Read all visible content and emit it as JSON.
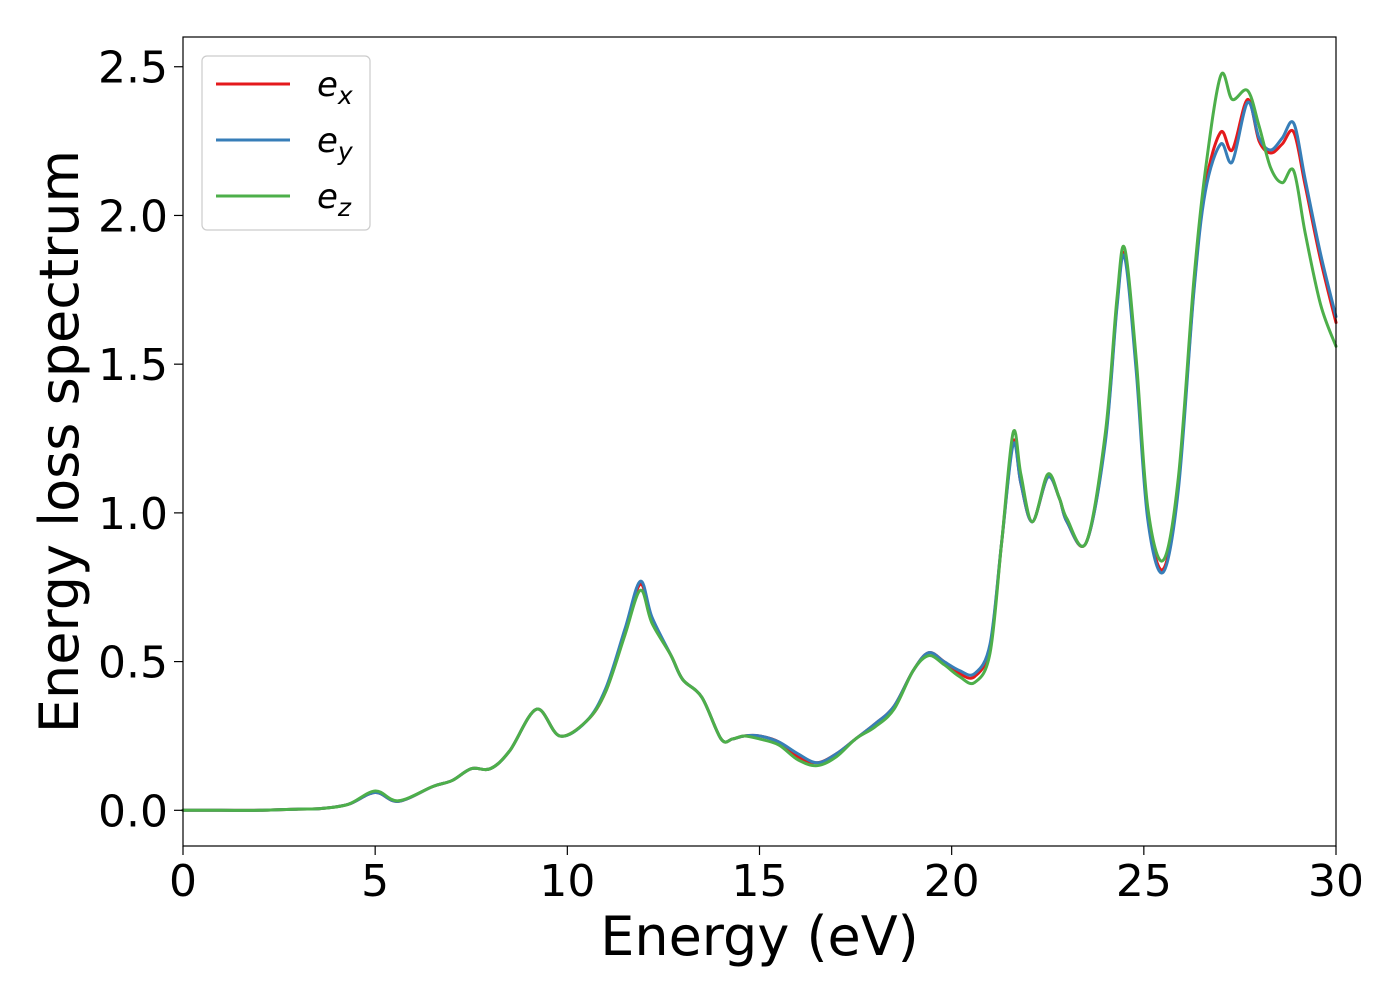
{
  "chart_data": {
    "type": "line",
    "xlabel": "Energy (eV)",
    "ylabel": "Energy loss spectrum",
    "xlim": [
      0,
      30
    ],
    "ylim": [
      -0.12,
      2.6
    ],
    "x_ticks": [
      0,
      5,
      10,
      15,
      20,
      25,
      30
    ],
    "y_ticks": [
      0.0,
      0.5,
      1.0,
      1.5,
      2.0,
      2.5
    ],
    "x_tick_labels": [
      "0",
      "5",
      "10",
      "15",
      "20",
      "25",
      "30"
    ],
    "y_tick_labels": [
      "0.0",
      "0.5",
      "1.0",
      "1.5",
      "2.0",
      "2.5"
    ],
    "grid": false,
    "legend_position": "top-left",
    "x": [
      0,
      1,
      2,
      3,
      3.6,
      4.3,
      5.0,
      5.6,
      6.5,
      7.0,
      7.5,
      8.0,
      8.5,
      9.2,
      9.8,
      10.5,
      11.0,
      11.5,
      11.9,
      12.2,
      12.7,
      13.0,
      13.5,
      14.0,
      14.3,
      14.6,
      15.0,
      15.5,
      16.0,
      16.5,
      17.0,
      17.5,
      18.0,
      18.5,
      19.0,
      19.4,
      19.8,
      20.2,
      20.6,
      21.0,
      21.3,
      21.6,
      21.8,
      22.1,
      22.5,
      22.8,
      23.0,
      23.5,
      24.0,
      24.3,
      24.5,
      24.8,
      25.1,
      25.5,
      25.9,
      26.3,
      26.6,
      27.0,
      27.3,
      27.7,
      28.0,
      28.3,
      28.6,
      28.9,
      29.2,
      29.6,
      30.0
    ],
    "series": [
      {
        "name": "e_x",
        "legend_symbol": "e",
        "legend_subscript": "x",
        "color": "#e41a1c",
        "values": [
          0.0,
          0.0,
          0.0,
          0.004,
          0.006,
          0.02,
          0.06,
          0.03,
          0.08,
          0.1,
          0.14,
          0.14,
          0.2,
          0.34,
          0.25,
          0.3,
          0.4,
          0.6,
          0.76,
          0.64,
          0.52,
          0.44,
          0.38,
          0.24,
          0.24,
          0.25,
          0.25,
          0.23,
          0.18,
          0.16,
          0.19,
          0.24,
          0.29,
          0.35,
          0.47,
          0.53,
          0.5,
          0.46,
          0.45,
          0.55,
          0.9,
          1.24,
          1.1,
          0.97,
          1.12,
          1.05,
          0.97,
          0.9,
          1.25,
          1.7,
          1.87,
          1.5,
          1.0,
          0.81,
          1.1,
          1.75,
          2.1,
          2.28,
          2.22,
          2.39,
          2.25,
          2.21,
          2.24,
          2.28,
          2.1,
          1.85,
          1.64
        ]
      },
      {
        "name": "e_y",
        "legend_symbol": "e",
        "legend_subscript": "y",
        "color": "#377eb8",
        "values": [
          0.0,
          0.0,
          0.0,
          0.004,
          0.006,
          0.02,
          0.06,
          0.03,
          0.08,
          0.1,
          0.14,
          0.14,
          0.2,
          0.34,
          0.25,
          0.3,
          0.41,
          0.61,
          0.77,
          0.65,
          0.52,
          0.44,
          0.38,
          0.24,
          0.24,
          0.25,
          0.25,
          0.23,
          0.19,
          0.16,
          0.19,
          0.24,
          0.29,
          0.35,
          0.47,
          0.53,
          0.5,
          0.47,
          0.46,
          0.56,
          0.9,
          1.23,
          1.1,
          0.97,
          1.12,
          1.05,
          0.97,
          0.9,
          1.24,
          1.69,
          1.86,
          1.48,
          0.98,
          0.8,
          1.08,
          1.74,
          2.08,
          2.24,
          2.18,
          2.38,
          2.26,
          2.22,
          2.26,
          2.31,
          2.12,
          1.87,
          1.66
        ]
      },
      {
        "name": "e_z",
        "legend_symbol": "e",
        "legend_subscript": "z",
        "color": "#4daf4a",
        "values": [
          0.0,
          0.0,
          0.0,
          0.004,
          0.006,
          0.02,
          0.065,
          0.032,
          0.08,
          0.1,
          0.14,
          0.14,
          0.2,
          0.34,
          0.25,
          0.3,
          0.4,
          0.59,
          0.74,
          0.63,
          0.52,
          0.44,
          0.38,
          0.24,
          0.24,
          0.25,
          0.24,
          0.22,
          0.17,
          0.15,
          0.18,
          0.24,
          0.28,
          0.34,
          0.47,
          0.52,
          0.49,
          0.45,
          0.43,
          0.53,
          0.9,
          1.27,
          1.13,
          0.97,
          1.13,
          1.05,
          0.98,
          0.9,
          1.27,
          1.72,
          1.89,
          1.52,
          1.02,
          0.84,
          1.12,
          1.78,
          2.15,
          2.47,
          2.39,
          2.42,
          2.3,
          2.16,
          2.11,
          2.15,
          1.94,
          1.7,
          1.56
        ]
      }
    ]
  }
}
